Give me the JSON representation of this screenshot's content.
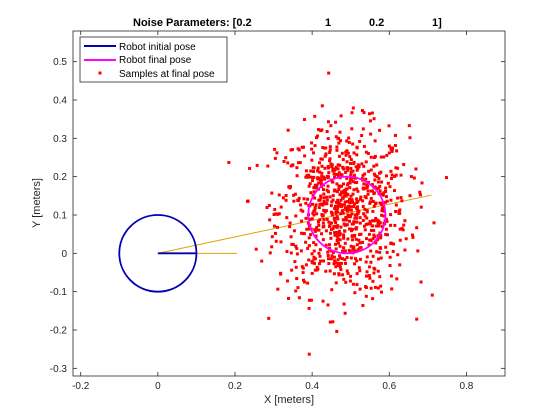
{
  "chart_data": {
    "type": "scatter",
    "title_parts": [
      "Noise Parameters: [0.2",
      "1",
      "0.2",
      "1]"
    ],
    "xlabel": "X [meters]",
    "ylabel": "Y [meters]",
    "xlim": [
      -0.22,
      0.9
    ],
    "ylim": [
      -0.32,
      0.58
    ],
    "xticks": [
      -0.2,
      0,
      0.2,
      0.4,
      0.6,
      0.8
    ],
    "xtick_labels": [
      "-0.2",
      "0",
      "0.2",
      "0.4",
      "0.6",
      "0.8"
    ],
    "yticks": [
      -0.3,
      -0.2,
      -0.1,
      0,
      0.1,
      0.2,
      0.3,
      0.4,
      0.5
    ],
    "ytick_labels": [
      "-0.3",
      "-0.2",
      "-0.1",
      "0",
      "0.1",
      "0.2",
      "0.3",
      "0.4",
      "0.5"
    ],
    "grid": false,
    "legend_position": "top-left",
    "legend": [
      {
        "label": "Robot initial pose",
        "kind": "line",
        "color": "#0000b4"
      },
      {
        "label": "Robot final pose",
        "kind": "line",
        "color": "#ff00ff"
      },
      {
        "label": "Samples at final pose",
        "kind": "marker",
        "color": "#ff0000"
      }
    ],
    "initial_pose": {
      "x": 0,
      "y": 0,
      "radius": 0.1,
      "heading_end": [
        0.1,
        0
      ],
      "color": "#0000b4"
    },
    "final_pose": {
      "x": 0.49,
      "y": 0.1,
      "radius": 0.1,
      "color": "#ff00ff"
    },
    "path": {
      "color": "#e0a000",
      "segments": [
        {
          "x": [
            0,
            0.71
          ],
          "y": [
            0,
            0.152
          ]
        },
        {
          "x": [
            0,
            0.205
          ],
          "y": [
            0,
            0
          ]
        }
      ]
    },
    "samples": {
      "color": "#ff0000",
      "count": 900,
      "mean_x": 0.48,
      "mean_y": 0.11,
      "std_x": 0.085,
      "std_y": 0.11
    }
  }
}
